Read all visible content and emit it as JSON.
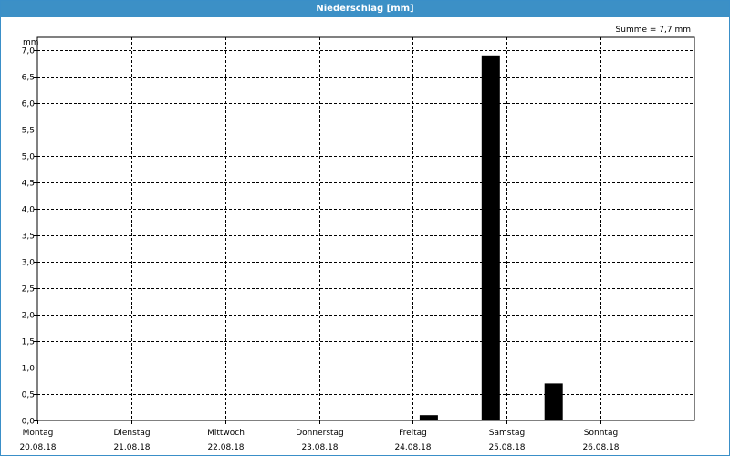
{
  "window": {
    "title": "Niederschlag [mm]"
  },
  "chart_data": {
    "type": "bar",
    "title": "Niederschlag [mm]",
    "unit": "mm",
    "summary": "Summe = 7,7 mm",
    "ylim": [
      0,
      7.0
    ],
    "ytick_step": 0.5,
    "ytick_labels": [
      "0,0",
      "0,5",
      "1,0",
      "1,5",
      "2,0",
      "2,5",
      "3,0",
      "3,5",
      "4,0",
      "4,5",
      "5,0",
      "5,5",
      "6,0",
      "6,5",
      "7,0"
    ],
    "x_range": [
      0,
      7.0
    ],
    "x_ticks": [
      {
        "day": "Montag",
        "date": "20.08.18"
      },
      {
        "day": "Dienstag",
        "date": "21.08.18"
      },
      {
        "day": "Mittwoch",
        "date": "22.08.18"
      },
      {
        "day": "Donnerstag",
        "date": "23.08.18"
      },
      {
        "day": "Freitag",
        "date": "24.08.18"
      },
      {
        "day": "Samstag",
        "date": "25.08.18"
      },
      {
        "day": "Sonntag",
        "date": "26.08.18"
      }
    ],
    "bars": [
      {
        "x": 4.17,
        "value": 0.1
      },
      {
        "x": 4.83,
        "value": 6.9
      },
      {
        "x": 5.5,
        "value": 0.7
      }
    ],
    "grid": true,
    "bar_color": "#000000",
    "grid_color": "#000000"
  }
}
